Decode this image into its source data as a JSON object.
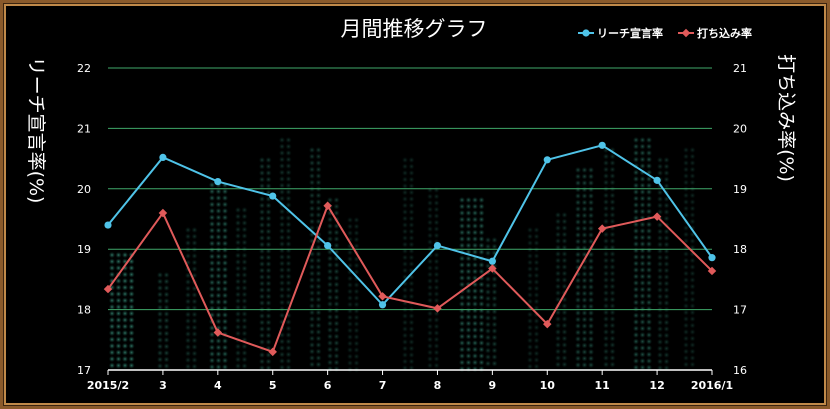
{
  "chart_data": {
    "type": "line",
    "title": "月間推移グラフ",
    "categories": [
      "2015/2",
      "3",
      "4",
      "5",
      "6",
      "7",
      "8",
      "9",
      "10",
      "11",
      "12",
      "2016/1"
    ],
    "y_left": {
      "label": "リーチ宣言率(%)",
      "range": [
        17,
        22
      ],
      "ticks": [
        "17",
        "18",
        "19",
        "20",
        "21",
        "22"
      ]
    },
    "y_right": {
      "label": "打ち込み率(%)",
      "range": [
        16,
        21
      ],
      "ticks": [
        "16",
        "17",
        "18",
        "19",
        "20",
        "21"
      ]
    },
    "grid": true,
    "legend_position": "top-right",
    "series": [
      {
        "name": "リーチ宣言率",
        "axis": "left",
        "color": "#4fc3e8",
        "values": [
          19.4,
          20.52,
          20.12,
          19.88,
          19.06,
          18.08,
          19.06,
          18.8,
          20.48,
          20.72,
          20.14,
          18.86
        ]
      },
      {
        "name": "打ち込み率",
        "axis": "right",
        "color": "#e05a5a",
        "values": [
          17.34,
          18.6,
          16.62,
          16.3,
          18.72,
          17.22,
          17.02,
          17.68,
          16.76,
          18.34,
          18.54,
          17.64
        ]
      }
    ]
  }
}
